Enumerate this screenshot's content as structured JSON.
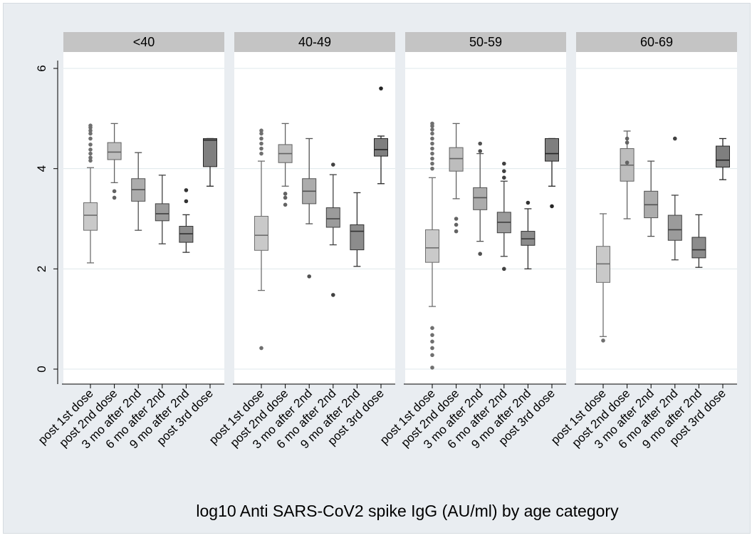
{
  "chart_data": {
    "type": "boxplot",
    "title": "log10 Anti SARS-CoV2 spike IgG (AU/ml) by age category",
    "xlabel": "",
    "ylabel": "",
    "ylim": [
      0,
      6.3
    ],
    "yticks": [
      0,
      2,
      4,
      6
    ],
    "grid": true,
    "legend": "none",
    "categories": [
      "post 1st dose",
      "post 2nd dose",
      "3 mo after 2nd",
      "6 mo after 2nd",
      "9 mo after 2nd",
      "post 3rd dose"
    ],
    "colors": [
      "#c9c9c9",
      "#bdbdbd",
      "#acacac",
      "#9b9b9b",
      "#8c8c8c",
      "#7f7f7f"
    ],
    "panels": [
      {
        "label": "<40",
        "boxes": [
          {
            "min": 2.12,
            "q1": 2.77,
            "median": 3.07,
            "q3": 3.32,
            "max": 4.02,
            "outliers": [
              4.16,
              4.22,
              4.3,
              4.38,
              4.48,
              4.6,
              4.7,
              4.76,
              4.82,
              4.86
            ]
          },
          {
            "min": 3.72,
            "q1": 4.18,
            "median": 4.33,
            "q3": 4.52,
            "max": 4.9,
            "outliers": [
              3.42,
              3.55
            ]
          },
          {
            "min": 2.77,
            "q1": 3.35,
            "median": 3.58,
            "q3": 3.8,
            "max": 4.32,
            "outliers": []
          },
          {
            "min": 2.5,
            "q1": 2.96,
            "median": 3.1,
            "q3": 3.3,
            "max": 3.87,
            "outliers": []
          },
          {
            "min": 2.33,
            "q1": 2.53,
            "median": 2.7,
            "q3": 2.85,
            "max": 3.08,
            "outliers": [
              3.35,
              3.57
            ]
          },
          {
            "min": 3.65,
            "q1": 4.04,
            "median": 4.57,
            "q3": 4.6,
            "max": 4.6,
            "outliers": []
          }
        ]
      },
      {
        "label": "40-49",
        "boxes": [
          {
            "min": 1.57,
            "q1": 2.37,
            "median": 2.67,
            "q3": 3.05,
            "max": 4.15,
            "outliers": [
              0.42,
              4.3,
              4.4,
              4.5,
              4.6,
              4.7,
              4.76
            ]
          },
          {
            "min": 3.65,
            "q1": 4.12,
            "median": 4.3,
            "q3": 4.48,
            "max": 4.9,
            "outliers": [
              3.28,
              3.42,
              3.5
            ]
          },
          {
            "min": 2.9,
            "q1": 3.3,
            "median": 3.55,
            "q3": 3.8,
            "max": 4.6,
            "outliers": [
              1.85
            ]
          },
          {
            "min": 2.48,
            "q1": 2.83,
            "median": 3.0,
            "q3": 3.22,
            "max": 3.88,
            "outliers": [
              1.48,
              4.08
            ]
          },
          {
            "min": 2.05,
            "q1": 2.38,
            "median": 2.75,
            "q3": 2.88,
            "max": 3.52,
            "outliers": []
          },
          {
            "min": 3.7,
            "q1": 4.25,
            "median": 4.38,
            "q3": 4.6,
            "max": 4.65,
            "outliers": [
              5.6
            ]
          }
        ]
      },
      {
        "label": "50-59",
        "boxes": [
          {
            "min": 1.25,
            "q1": 2.13,
            "median": 2.42,
            "q3": 2.78,
            "max": 3.82,
            "outliers": [
              0.03,
              0.28,
              0.42,
              0.55,
              0.68,
              0.82,
              4.0,
              4.1,
              4.2,
              4.3,
              4.4,
              4.5,
              4.6,
              4.7,
              4.78,
              4.85,
              4.9
            ]
          },
          {
            "min": 3.4,
            "q1": 3.95,
            "median": 4.2,
            "q3": 4.42,
            "max": 4.9,
            "outliers": [
              2.75,
              2.88,
              3.0
            ]
          },
          {
            "min": 2.55,
            "q1": 3.18,
            "median": 3.42,
            "q3": 3.62,
            "max": 4.3,
            "outliers": [
              2.3,
              4.35,
              4.5
            ]
          },
          {
            "min": 2.25,
            "q1": 2.72,
            "median": 2.93,
            "q3": 3.13,
            "max": 3.75,
            "outliers": [
              2.0,
              3.82,
              3.95,
              4.1
            ]
          },
          {
            "min": 2.0,
            "q1": 2.47,
            "median": 2.6,
            "q3": 2.75,
            "max": 3.2,
            "outliers": [
              3.32
            ]
          },
          {
            "min": 3.65,
            "q1": 4.15,
            "median": 4.3,
            "q3": 4.6,
            "max": 4.6,
            "outliers": [
              3.25
            ]
          }
        ]
      },
      {
        "label": "60-69",
        "boxes": [
          {
            "min": 0.65,
            "q1": 1.73,
            "median": 2.1,
            "q3": 2.45,
            "max": 3.1,
            "outliers": [
              0.57
            ]
          },
          {
            "min": 3.0,
            "q1": 3.75,
            "median": 4.07,
            "q3": 4.4,
            "max": 4.75,
            "outliers": [
              4.12,
              4.52,
              4.6
            ]
          },
          {
            "min": 2.65,
            "q1": 3.02,
            "median": 3.28,
            "q3": 3.55,
            "max": 4.15,
            "outliers": []
          },
          {
            "min": 2.18,
            "q1": 2.57,
            "median": 2.78,
            "q3": 3.07,
            "max": 3.47,
            "outliers": [
              4.6
            ]
          },
          {
            "min": 2.03,
            "q1": 2.22,
            "median": 2.38,
            "q3": 2.63,
            "max": 3.08,
            "outliers": []
          },
          {
            "min": 3.78,
            "q1": 4.03,
            "median": 4.17,
            "q3": 4.45,
            "max": 4.6,
            "outliers": []
          }
        ]
      }
    ]
  }
}
